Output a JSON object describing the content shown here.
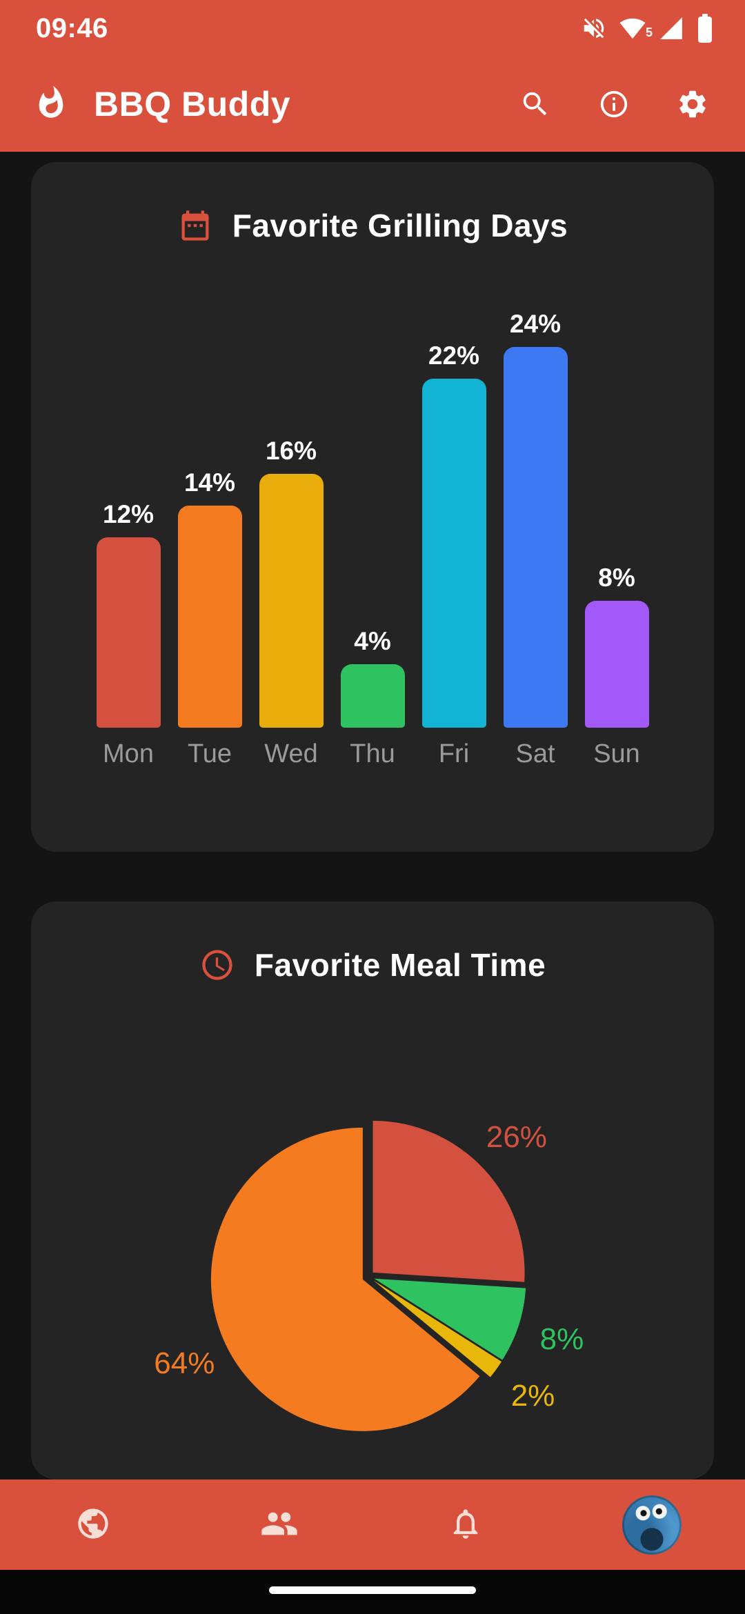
{
  "status_bar": {
    "time": "09:46",
    "wifi_badge": "5",
    "icons": [
      "volume-muted",
      "wifi",
      "cellular-signal",
      "battery"
    ]
  },
  "app_bar": {
    "title": "BBQ Buddy",
    "actions": [
      "search",
      "info",
      "settings"
    ]
  },
  "chart_data": [
    {
      "type": "bar",
      "title": "Favorite Grilling Days",
      "categories": [
        "Mon",
        "Tue",
        "Wed",
        "Thu",
        "Fri",
        "Sat",
        "Sun"
      ],
      "values": [
        12,
        14,
        16,
        4,
        22,
        24,
        8
      ],
      "value_labels": [
        "12%",
        "14%",
        "16%",
        "4%",
        "22%",
        "24%",
        "8%"
      ],
      "colors": [
        "#d3513e",
        "#f47b20",
        "#e9ae0b",
        "#2ec360",
        "#12b3d4",
        "#3d79f2",
        "#a259f7"
      ],
      "xlabel": "",
      "ylabel": "",
      "ylim": [
        0,
        24
      ],
      "grid": false,
      "legend": false
    },
    {
      "type": "pie",
      "title": "Favorite Meal Time",
      "slices": [
        {
          "label": "26%",
          "value": 26,
          "color": "#d3513e"
        },
        {
          "label": "8%",
          "value": 8,
          "color": "#2ec360"
        },
        {
          "label": "2%",
          "value": 2,
          "color": "#e9b70a"
        },
        {
          "label": "64%",
          "value": 64,
          "color": "#f47b20"
        }
      ],
      "start_angle_deg": 0,
      "direction": "clockwise",
      "legend": false
    }
  ],
  "bottom_nav": {
    "items": [
      {
        "icon": "globe"
      },
      {
        "icon": "people"
      },
      {
        "icon": "notifications-bell"
      },
      {
        "icon": "avatar"
      }
    ]
  },
  "colors": {
    "primary": "#d9503c",
    "background": "#141414",
    "card": "#242424",
    "text": "#ffffff",
    "muted_text": "#9b9b9b"
  }
}
